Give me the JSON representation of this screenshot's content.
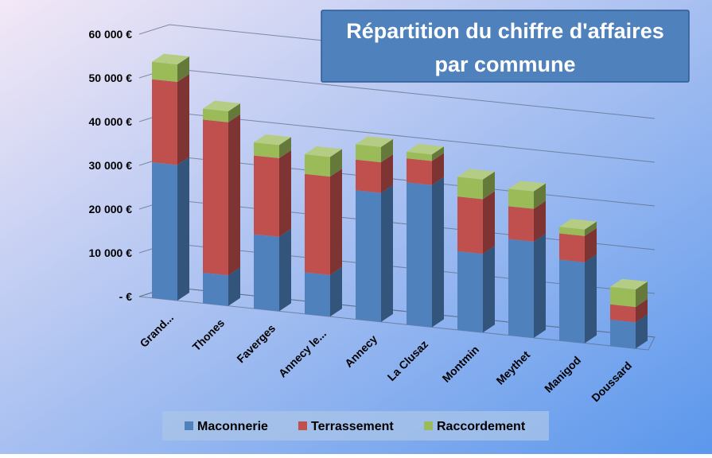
{
  "chart_data": {
    "type": "bar",
    "stacked": true,
    "three_d": true,
    "title": "Répartition du chiffre d'affaires par commune",
    "title_lines": [
      "Répartition du chiffre d'affaires",
      "par commune"
    ],
    "categories": [
      "Grand...",
      "Thones",
      "Faverges",
      "Annecy le...",
      "Annecy",
      "La Clusaz",
      "Montmin",
      "Meythet",
      "Manigod",
      "Doussard"
    ],
    "series": [
      {
        "name": "Maconnerie",
        "values": [
          31000,
          7000,
          17000,
          9500,
          29500,
          32500,
          18000,
          22000,
          18500,
          6000
        ],
        "color": "#4F81BD"
      },
      {
        "name": "Terrassement",
        "values": [
          19000,
          35000,
          18000,
          22500,
          7000,
          5500,
          12500,
          7500,
          6000,
          3500
        ],
        "color": "#C0504D"
      },
      {
        "name": "Raccordement",
        "values": [
          4000,
          2500,
          3000,
          4500,
          3500,
          1500,
          4500,
          4000,
          1500,
          4000
        ],
        "color": "#9BBB59"
      }
    ],
    "yticks": [
      "- €",
      "10 000 €",
      "20 000 €",
      "30 000 €",
      "40 000 €",
      "50 000 €",
      "60 000 €"
    ],
    "ylim": [
      0,
      60000
    ],
    "legend_position": "bottom",
    "gridlines": true,
    "colors": {
      "background_start": "#F3E8F6",
      "background_end": "#5B97EC",
      "title_box": "#4F81BD"
    }
  }
}
